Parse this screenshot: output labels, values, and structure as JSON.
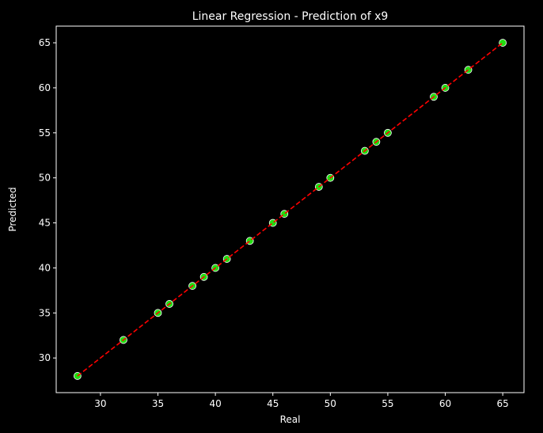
{
  "chart_data": {
    "type": "scatter",
    "title": "Linear Regression - Prediction of x9",
    "xlabel": "Real",
    "ylabel": "Predicted",
    "xlim": [
      26.15,
      66.85
    ],
    "ylim": [
      26.15,
      66.85
    ],
    "xticks": [
      30,
      35,
      40,
      45,
      50,
      55,
      60,
      65
    ],
    "yticks": [
      30,
      35,
      40,
      45,
      50,
      55,
      60,
      65
    ],
    "grid": false,
    "legend": "none",
    "series": [
      {
        "type": "scatter",
        "x": [
          28,
          32,
          35,
          36,
          38,
          39,
          40,
          41,
          43,
          45,
          46,
          49,
          50,
          53,
          54,
          55,
          59,
          60,
          62,
          65
        ],
        "y": [
          28,
          32,
          35,
          36,
          38,
          39,
          40,
          41,
          43,
          45,
          46,
          49,
          50,
          53,
          54,
          55,
          59,
          60,
          62,
          65
        ],
        "color": "#22dd11",
        "edge_color": "#ffffff"
      },
      {
        "type": "line",
        "style": "dashed",
        "x": [
          28,
          65
        ],
        "y": [
          28,
          65
        ],
        "color": "#ff0000"
      }
    ],
    "colors": {
      "background": "#000000",
      "axes": "#ffffff",
      "text": "#ffffff"
    }
  }
}
